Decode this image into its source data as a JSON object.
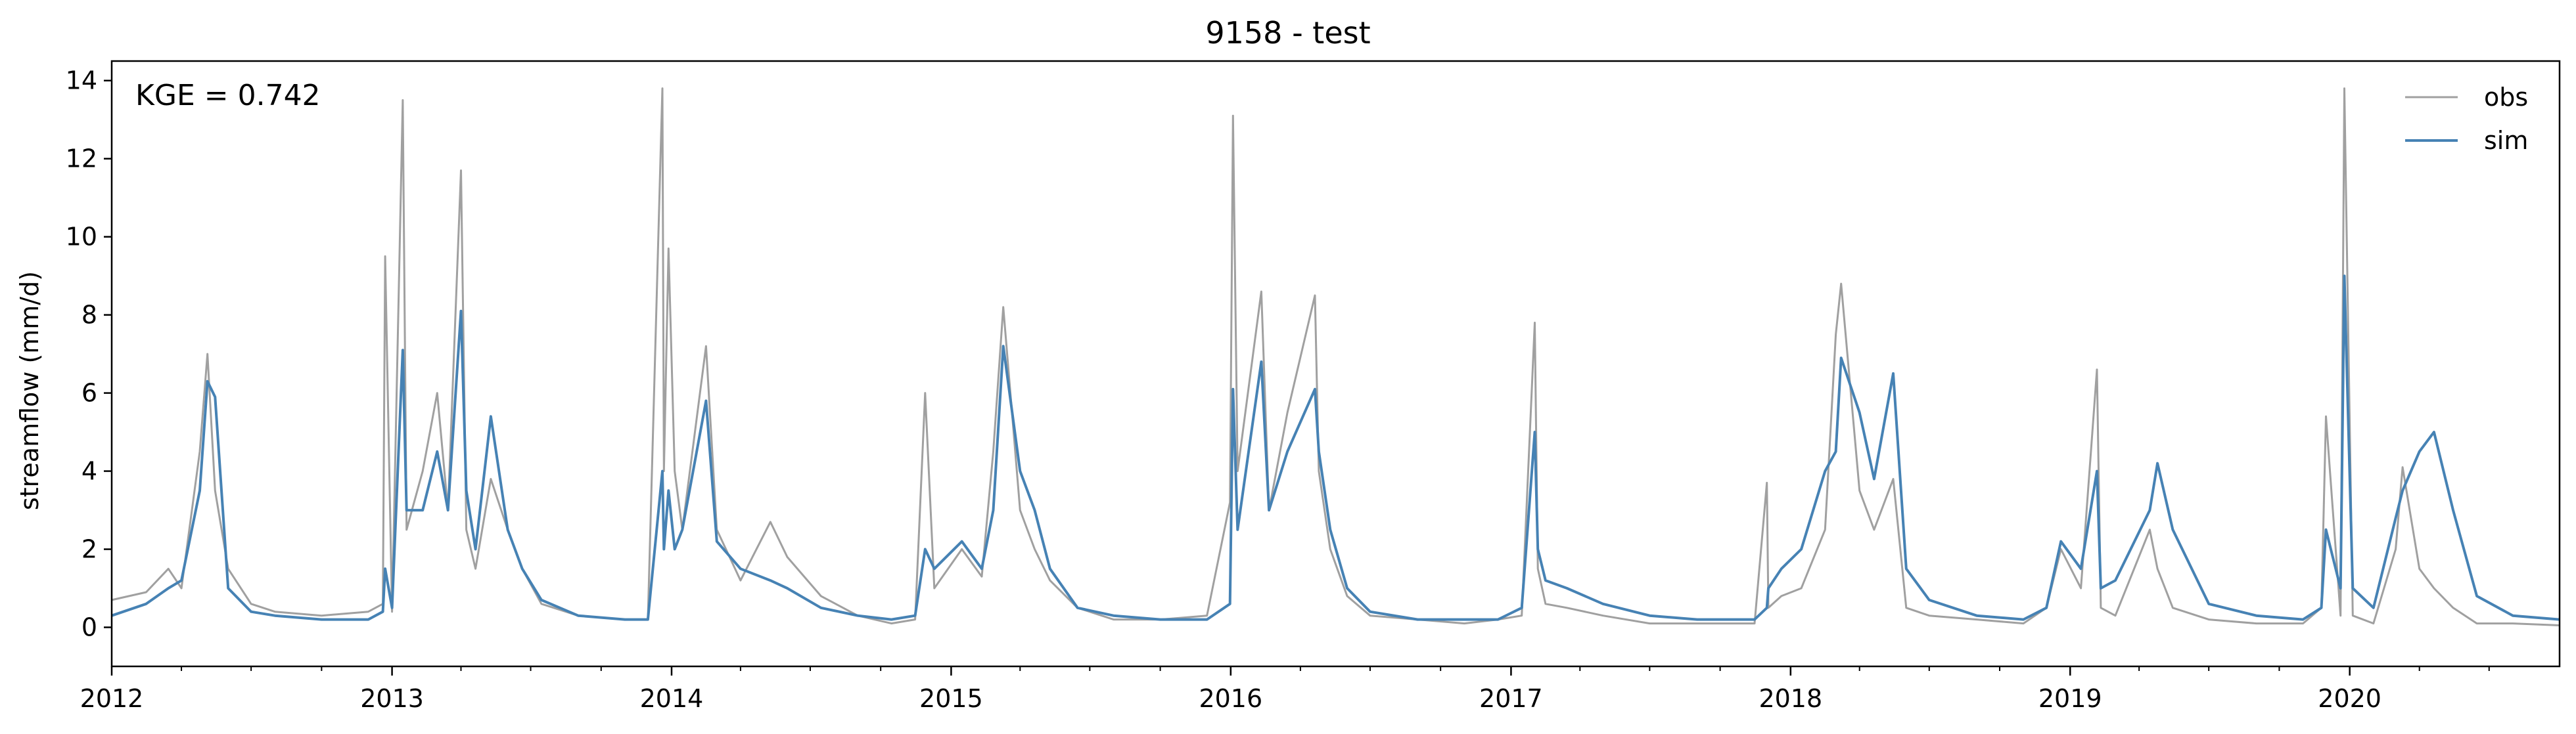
{
  "chart_data": {
    "type": "line",
    "title": "9158 - test",
    "xlabel": "",
    "ylabel": "streamflow (mm/d)",
    "annotation": "KGE = 0.742",
    "xlim": [
      "2012-01-01",
      "2020-10-01"
    ],
    "ylim": [
      -1,
      14.5
    ],
    "x_ticks": [
      "2012",
      "2013",
      "2014",
      "2015",
      "2016",
      "2017",
      "2018",
      "2019",
      "2020"
    ],
    "y_ticks": [
      0,
      2,
      4,
      6,
      8,
      10,
      12,
      14
    ],
    "grid": false,
    "legend_position": "top-right",
    "series": [
      {
        "name": "obs",
        "color": "#a0a0a0",
        "x": [
          "2012-01-01",
          "2012-02-15",
          "2012-03-15",
          "2012-04-01",
          "2012-04-25",
          "2012-05-05",
          "2012-05-15",
          "2012-06-01",
          "2012-07-01",
          "2012-08-01",
          "2012-10-01",
          "2012-12-01",
          "2012-12-20",
          "2012-12-23",
          "2013-01-01",
          "2013-01-15",
          "2013-01-20",
          "2013-02-10",
          "2013-03-01",
          "2013-03-15",
          "2013-04-01",
          "2013-04-08",
          "2013-04-20",
          "2013-05-10",
          "2013-06-01",
          "2013-06-20",
          "2013-07-15",
          "2013-09-01",
          "2013-11-01",
          "2013-12-01",
          "2013-12-20",
          "2013-12-22",
          "2013-12-28",
          "2014-01-05",
          "2014-01-15",
          "2014-02-15",
          "2014-03-01",
          "2014-04-01",
          "2014-05-10",
          "2014-06-01",
          "2014-07-15",
          "2014-09-01",
          "2014-10-15",
          "2014-11-15",
          "2014-11-28",
          "2014-12-10",
          "2015-01-15",
          "2015-02-10",
          "2015-02-25",
          "2015-03-10",
          "2015-04-01",
          "2015-04-20",
          "2015-05-10",
          "2015-06-15",
          "2015-08-01",
          "2015-10-01",
          "2015-12-01",
          "2015-12-31",
          "2016-01-04",
          "2016-01-10",
          "2016-02-10",
          "2016-02-20",
          "2016-03-15",
          "2016-04-20",
          "2016-04-25",
          "2016-05-10",
          "2016-06-01",
          "2016-07-01",
          "2016-09-01",
          "2016-11-01",
          "2016-12-15",
          "2017-01-15",
          "2017-02-01",
          "2017-02-05",
          "2017-02-15",
          "2017-03-15",
          "2017-05-01",
          "2017-07-01",
          "2017-09-01",
          "2017-11-15",
          "2017-12-01",
          "2017-12-03",
          "2017-12-20",
          "2018-01-15",
          "2018-02-15",
          "2018-03-01",
          "2018-03-08",
          "2018-04-01",
          "2018-04-20",
          "2018-05-15",
          "2018-06-01",
          "2018-07-01",
          "2018-09-01",
          "2018-11-01",
          "2018-12-01",
          "2018-12-20",
          "2019-01-15",
          "2019-02-05",
          "2019-02-10",
          "2019-03-01",
          "2019-04-15",
          "2019-04-25",
          "2019-05-15",
          "2019-07-01",
          "2019-09-01",
          "2019-11-01",
          "2019-11-25",
          "2019-12-01",
          "2019-12-20",
          "2019-12-25",
          "2020-01-05",
          "2020-02-01",
          "2020-03-01",
          "2020-03-10",
          "2020-04-01",
          "2020-04-20",
          "2020-05-15",
          "2020-06-15",
          "2020-08-01",
          "2020-10-01"
        ],
        "y": [
          0.7,
          0.9,
          1.5,
          1.0,
          4.5,
          7.0,
          3.5,
          1.5,
          0.6,
          0.4,
          0.3,
          0.4,
          0.6,
          9.5,
          0.4,
          13.5,
          2.5,
          4.0,
          6.0,
          3.0,
          11.7,
          2.5,
          1.5,
          3.8,
          2.5,
          1.5,
          0.6,
          0.3,
          0.2,
          0.2,
          13.8,
          4.0,
          9.7,
          4.0,
          2.5,
          7.2,
          2.5,
          1.2,
          2.7,
          1.8,
          0.8,
          0.3,
          0.1,
          0.2,
          6.0,
          1.0,
          2.0,
          1.3,
          4.5,
          8.2,
          3.0,
          2.0,
          1.2,
          0.5,
          0.2,
          0.2,
          0.3,
          3.2,
          13.1,
          4.0,
          8.6,
          3.0,
          5.5,
          8.5,
          4.0,
          2.0,
          0.8,
          0.3,
          0.2,
          0.1,
          0.2,
          0.3,
          7.8,
          1.5,
          0.6,
          0.5,
          0.3,
          0.1,
          0.1,
          0.1,
          3.7,
          0.5,
          0.8,
          1.0,
          2.5,
          7.5,
          8.8,
          3.5,
          2.5,
          3.8,
          0.5,
          0.3,
          0.2,
          0.1,
          0.5,
          2.0,
          1.0,
          6.6,
          0.5,
          0.3,
          2.5,
          1.5,
          0.5,
          0.2,
          0.1,
          0.1,
          0.5,
          5.4,
          0.3,
          13.8,
          0.3,
          0.1,
          2.0,
          4.1,
          1.5,
          1.0,
          0.5,
          0.1,
          0.1,
          0.05
        ]
      },
      {
        "name": "sim",
        "color": "#4682b4",
        "x": [
          "2012-01-01",
          "2012-02-15",
          "2012-03-15",
          "2012-04-01",
          "2012-04-25",
          "2012-05-05",
          "2012-05-15",
          "2012-06-01",
          "2012-07-01",
          "2012-08-01",
          "2012-10-01",
          "2012-12-01",
          "2012-12-20",
          "2012-12-23",
          "2013-01-01",
          "2013-01-15",
          "2013-01-20",
          "2013-02-10",
          "2013-03-01",
          "2013-03-15",
          "2013-04-01",
          "2013-04-08",
          "2013-04-20",
          "2013-05-10",
          "2013-06-01",
          "2013-06-20",
          "2013-07-15",
          "2013-09-01",
          "2013-11-01",
          "2013-12-01",
          "2013-12-20",
          "2013-12-22",
          "2013-12-28",
          "2014-01-05",
          "2014-01-15",
          "2014-02-15",
          "2014-03-01",
          "2014-04-01",
          "2014-05-10",
          "2014-06-01",
          "2014-07-15",
          "2014-09-01",
          "2014-10-15",
          "2014-11-15",
          "2014-11-28",
          "2014-12-10",
          "2015-01-15",
          "2015-02-10",
          "2015-02-25",
          "2015-03-10",
          "2015-04-01",
          "2015-04-20",
          "2015-05-10",
          "2015-06-15",
          "2015-08-01",
          "2015-10-01",
          "2015-12-01",
          "2015-12-31",
          "2016-01-04",
          "2016-01-10",
          "2016-02-10",
          "2016-02-20",
          "2016-03-15",
          "2016-04-20",
          "2016-04-25",
          "2016-05-10",
          "2016-06-01",
          "2016-07-01",
          "2016-09-01",
          "2016-11-01",
          "2016-12-15",
          "2017-01-15",
          "2017-02-01",
          "2017-02-05",
          "2017-02-15",
          "2017-03-15",
          "2017-05-01",
          "2017-07-01",
          "2017-09-01",
          "2017-11-15",
          "2017-12-01",
          "2017-12-03",
          "2017-12-20",
          "2018-01-15",
          "2018-02-15",
          "2018-03-01",
          "2018-03-08",
          "2018-04-01",
          "2018-04-20",
          "2018-05-15",
          "2018-06-01",
          "2018-07-01",
          "2018-09-01",
          "2018-11-01",
          "2018-12-01",
          "2018-12-20",
          "2019-01-15",
          "2019-02-05",
          "2019-02-10",
          "2019-03-01",
          "2019-04-15",
          "2019-04-25",
          "2019-05-15",
          "2019-07-01",
          "2019-09-01",
          "2019-11-01",
          "2019-11-25",
          "2019-12-01",
          "2019-12-20",
          "2019-12-25",
          "2020-01-05",
          "2020-02-01",
          "2020-03-01",
          "2020-03-10",
          "2020-04-01",
          "2020-04-20",
          "2020-05-15",
          "2020-06-15",
          "2020-08-01",
          "2020-10-01"
        ],
        "y": [
          0.3,
          0.6,
          1.0,
          1.2,
          3.5,
          6.3,
          5.9,
          1.0,
          0.4,
          0.3,
          0.2,
          0.2,
          0.4,
          1.5,
          0.5,
          7.1,
          3.0,
          3.0,
          4.5,
          3.0,
          8.1,
          3.5,
          2.0,
          5.4,
          2.5,
          1.5,
          0.7,
          0.3,
          0.2,
          0.2,
          4.0,
          2.0,
          3.5,
          2.0,
          2.5,
          5.8,
          2.2,
          1.5,
          1.2,
          1.0,
          0.5,
          0.3,
          0.2,
          0.3,
          2.0,
          1.5,
          2.2,
          1.5,
          3.0,
          7.2,
          4.0,
          3.0,
          1.5,
          0.5,
          0.3,
          0.2,
          0.2,
          0.6,
          6.1,
          2.5,
          6.8,
          3.0,
          4.5,
          6.1,
          4.5,
          2.5,
          1.0,
          0.4,
          0.2,
          0.2,
          0.2,
          0.5,
          5.0,
          2.0,
          1.2,
          1.0,
          0.6,
          0.3,
          0.2,
          0.2,
          0.5,
          1.0,
          1.5,
          2.0,
          4.0,
          4.5,
          6.9,
          5.5,
          3.8,
          6.5,
          1.5,
          0.7,
          0.3,
          0.2,
          0.5,
          2.2,
          1.5,
          4.0,
          1.0,
          1.2,
          3.0,
          4.2,
          2.5,
          0.6,
          0.3,
          0.2,
          0.5,
          2.5,
          1.0,
          9.0,
          1.0,
          0.5,
          2.8,
          3.5,
          4.5,
          5.0,
          3.0,
          0.8,
          0.3,
          0.2
        ]
      }
    ]
  }
}
